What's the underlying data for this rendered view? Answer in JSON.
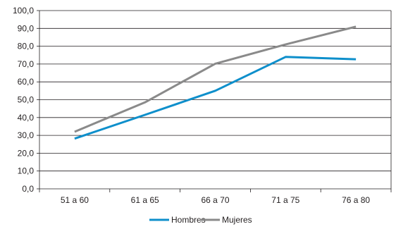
{
  "chart_data": {
    "type": "line",
    "title": "",
    "xlabel": "",
    "ylabel": "",
    "categories": [
      "51 a 60",
      "61 a 65",
      "66 a 70",
      "71 a 75",
      "76 a 80"
    ],
    "ylim": [
      0,
      100
    ],
    "yticks": [
      "0,0",
      "10,0",
      "20,0",
      "30,0",
      "40,0",
      "50,0",
      "60,0",
      "70,0",
      "80,0",
      "90,0",
      "100,0"
    ],
    "grid": true,
    "legend_position": "bottom",
    "series": [
      {
        "name": "Hombres",
        "color": "#0e8fcb",
        "values": [
          28.2,
          41.5,
          55.0,
          74.0,
          72.7
        ]
      },
      {
        "name": "Mujeres",
        "color": "#8a8a8a",
        "values": [
          32.0,
          48.5,
          70.2,
          81.0,
          91.0
        ]
      }
    ]
  }
}
